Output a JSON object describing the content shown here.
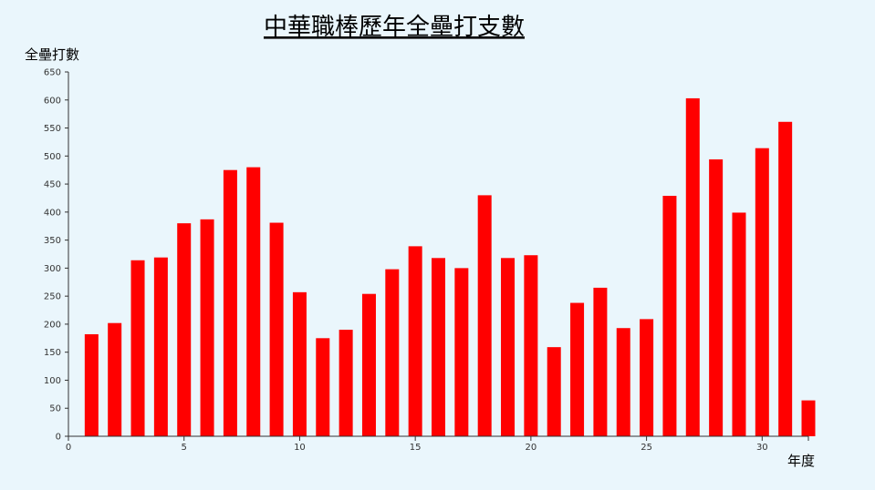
{
  "chart_data": {
    "type": "bar",
    "title": "中華職棒歷年全壘打支數",
    "xlabel": "年度",
    "ylabel": "全壘打數",
    "xlim": [
      0,
      32
    ],
    "ylim": [
      0,
      650
    ],
    "x_ticks": [
      0,
      5,
      10,
      15,
      20,
      25,
      30
    ],
    "y_ticks": [
      0,
      50,
      100,
      150,
      200,
      250,
      300,
      350,
      400,
      450,
      500,
      550,
      600,
      650
    ],
    "grid": false,
    "legend": "none",
    "bar_color": "#ff0000",
    "x": [
      1,
      2,
      3,
      4,
      5,
      6,
      7,
      8,
      9,
      10,
      11,
      12,
      13,
      14,
      15,
      16,
      17,
      18,
      19,
      20,
      21,
      22,
      23,
      24,
      25,
      26,
      27,
      28,
      29,
      30,
      31,
      32
    ],
    "values": [
      182,
      202,
      314,
      319,
      380,
      387,
      475,
      480,
      381,
      257,
      175,
      190,
      254,
      298,
      339,
      318,
      300,
      430,
      318,
      323,
      159,
      238,
      265,
      193,
      209,
      429,
      603,
      494,
      399,
      514,
      561,
      64
    ]
  }
}
